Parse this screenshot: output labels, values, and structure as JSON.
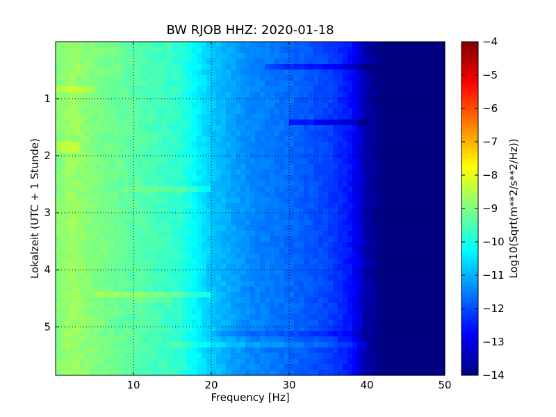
{
  "chart_data": {
    "type": "heatmap",
    "title": "BW RJOB HHZ: 2020-01-18",
    "xlabel": "Frequency [Hz]",
    "ylabel": "Lokalzeit (UTC + 1 Stunde)",
    "colorbar_label": "Log10(Sqrt(m**2/s**2/Hz))",
    "xlim": [
      0,
      50
    ],
    "ylim": [
      5.85,
      0.0
    ],
    "y_inverted": true,
    "x_ticks": [
      10,
      20,
      30,
      40,
      50
    ],
    "x_tick_labels": [
      "10",
      "20",
      "30",
      "40",
      "50"
    ],
    "y_ticks": [
      1,
      2,
      3,
      4,
      5
    ],
    "y_tick_labels": [
      "1",
      "2",
      "3",
      "4",
      "5"
    ],
    "grid": true,
    "colormap": "jet",
    "color_range": [
      -14,
      -4
    ],
    "colorbar_ticks": [
      -4,
      -5,
      -6,
      -7,
      -8,
      -9,
      -10,
      -11,
      -12,
      -13,
      -14
    ],
    "colorbar_tick_labels": [
      "−4",
      "−5",
      "−6",
      "−7",
      "−8",
      "−9",
      "−10",
      "−11",
      "−12",
      "−13",
      "−14"
    ],
    "spectrum_profile": {
      "frequency_hz": [
        0,
        2,
        5,
        8,
        12,
        16,
        20,
        25,
        30,
        35,
        38,
        40,
        42,
        50
      ],
      "log10_amplitude": [
        -9.0,
        -8.7,
        -9.0,
        -9.2,
        -9.5,
        -9.8,
        -10.8,
        -11.4,
        -11.7,
        -12.1,
        -12.6,
        -13.6,
        -14.0,
        -14.0
      ]
    },
    "features": {
      "time_hours": [
        0.45,
        0.85,
        1.45,
        1.85,
        2.55,
        4.4,
        4.55,
        5.1,
        5.35
      ],
      "frequency_range_hz": [
        [
          27,
          42
        ],
        [
          0,
          5
        ],
        [
          30,
          40
        ],
        [
          0,
          3
        ],
        [
          10,
          20
        ],
        [
          5,
          20
        ],
        [
          10,
          15
        ],
        [
          20,
          40
        ],
        [
          15,
          40
        ]
      ],
      "delta_log10": [
        -0.6,
        0.5,
        -0.7,
        0.4,
        0.4,
        0.5,
        0.3,
        -0.3,
        0.3
      ]
    }
  }
}
